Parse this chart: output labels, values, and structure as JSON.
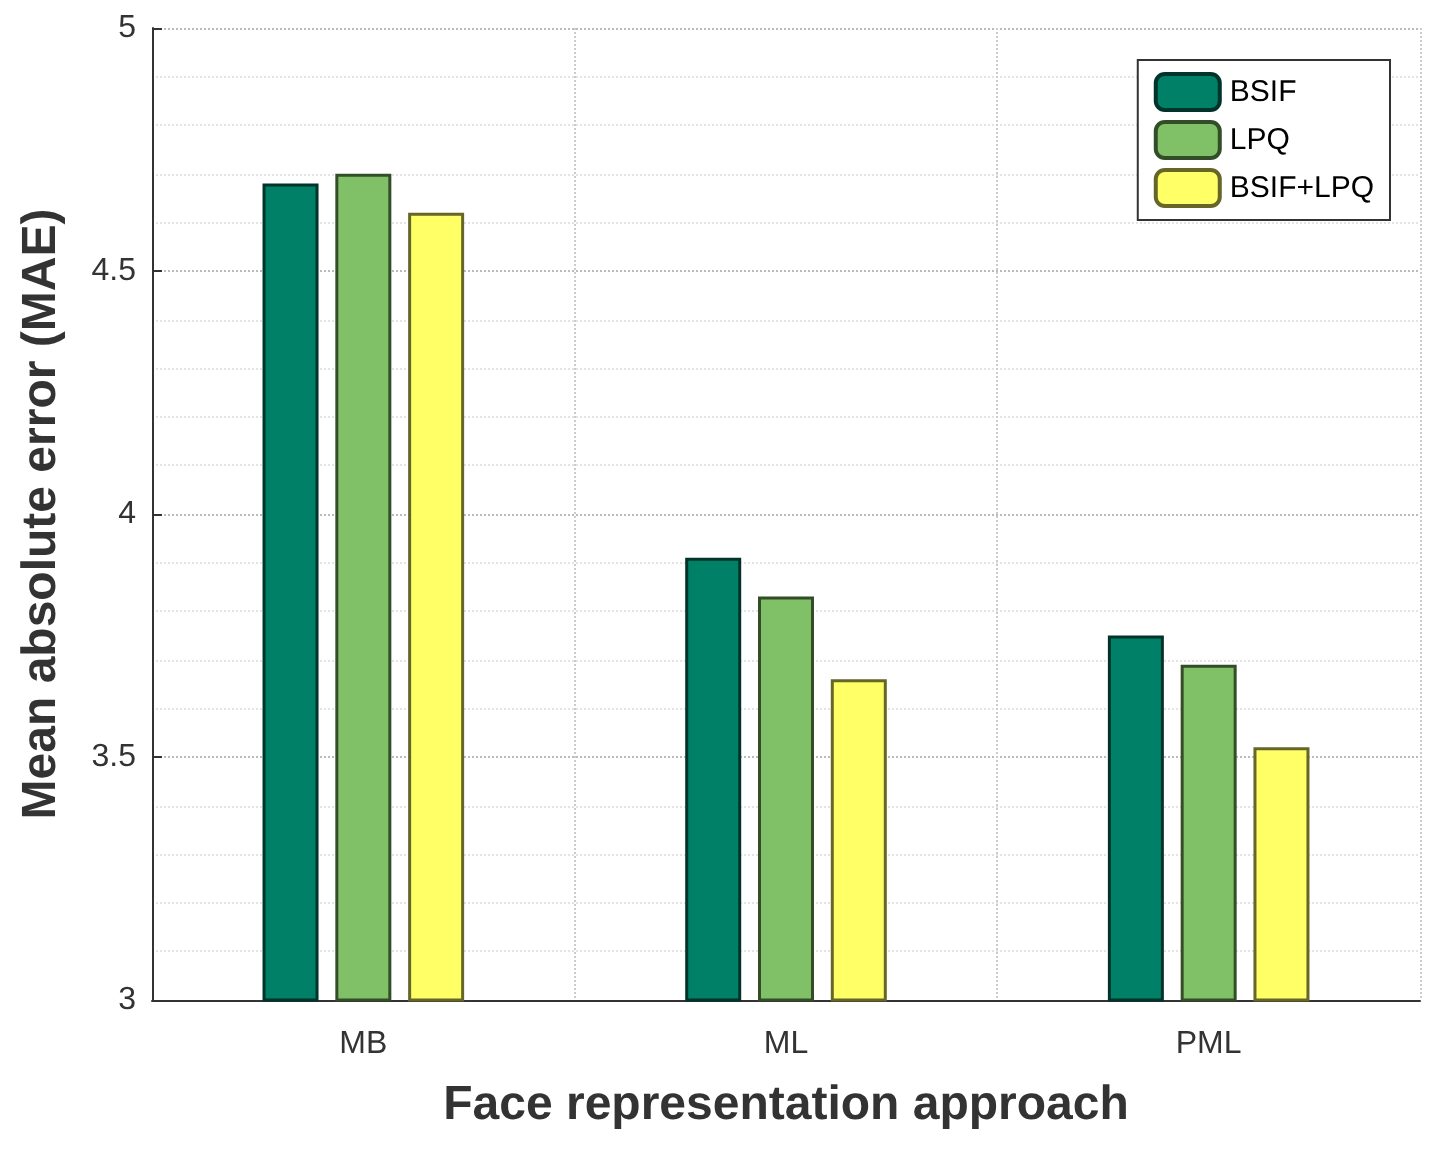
{
  "chart_data": {
    "type": "bar",
    "xlabel": "Face representation approach",
    "ylabel": "Mean absolute error (MAE)",
    "categories": [
      "MB",
      "ML",
      "PML"
    ],
    "series": [
      {
        "name": "BSIF",
        "color": "#008066",
        "values": [
          4.68,
          3.91,
          3.75
        ]
      },
      {
        "name": "LPQ",
        "color": "#80c066",
        "values": [
          4.7,
          3.83,
          3.69
        ]
      },
      {
        "name": "BSIF+LPQ",
        "color": "#ffff66",
        "values": [
          4.62,
          3.66,
          3.52
        ]
      }
    ],
    "ylim": [
      3,
      5
    ],
    "yticks": [
      3,
      3.5,
      4,
      4.5,
      5
    ],
    "grid": true,
    "legend": "top right"
  }
}
